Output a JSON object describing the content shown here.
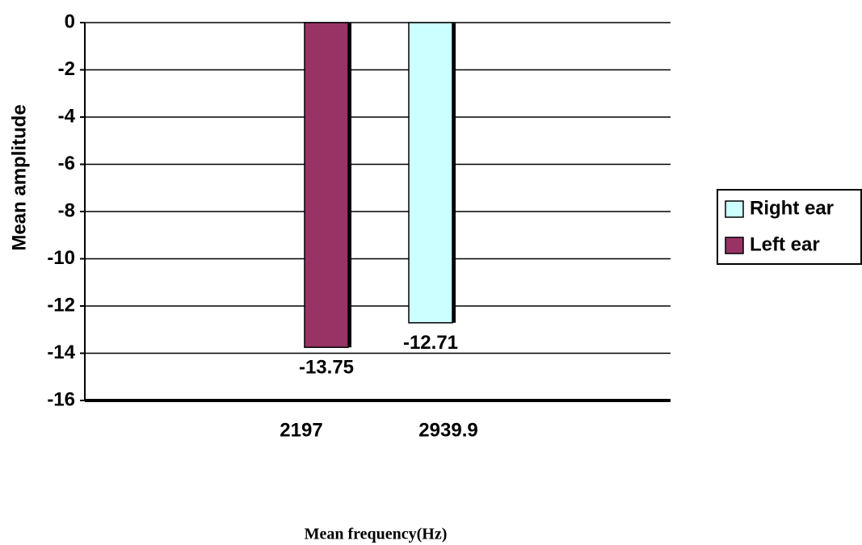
{
  "chart_data": {
    "type": "bar",
    "y_label": "Mean amplitude",
    "x_label": "Mean frequency(Hz)",
    "categories": [
      "2197",
      "2939.9"
    ],
    "series": [
      {
        "name": "Right ear",
        "color": "#ccffff",
        "values": [
          null,
          -12.71
        ]
      },
      {
        "name": "Left ear",
        "color": "#993366",
        "values": [
          -13.75,
          null
        ]
      }
    ],
    "ylim": [
      -16,
      0
    ],
    "yticks": [
      0,
      -2,
      -4,
      -6,
      -8,
      -10,
      -12,
      -14,
      -16
    ],
    "grid": true,
    "legend": "right"
  }
}
